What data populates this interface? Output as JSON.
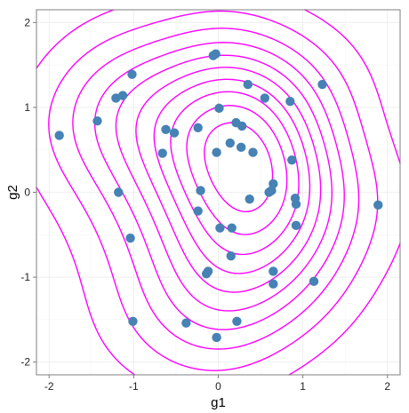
{
  "chart_data": {
    "type": "scatter",
    "title": "",
    "xlabel": "g1",
    "ylabel": "g2",
    "xlim": [
      -2.15,
      2.15
    ],
    "ylim": [
      -2.15,
      2.15
    ],
    "x_ticks": [
      -2,
      -1,
      0,
      1,
      2
    ],
    "y_ticks": [
      -2,
      -1,
      0,
      1,
      2
    ],
    "x_tick_labels": [
      "-2",
      "-1",
      "0",
      "1",
      "2"
    ],
    "y_tick_labels": [
      "-2",
      "-1",
      "0",
      "1",
      "2"
    ],
    "grid": true,
    "background": "#ffffff",
    "panel_border": "#7f7f7f",
    "grid_color": "#ebebeb",
    "point_color": "#4682b4",
    "contour_color": "#ff00ff",
    "points": [
      {
        "x": -1.88,
        "y": 0.67
      },
      {
        "x": -1.43,
        "y": 0.84
      },
      {
        "x": -1.02,
        "y": 1.39
      },
      {
        "x": -1.21,
        "y": 1.11
      },
      {
        "x": -1.13,
        "y": 1.14
      },
      {
        "x": -1.18,
        "y": 0.0
      },
      {
        "x": -1.04,
        "y": -0.54
      },
      {
        "x": -1.01,
        "y": -1.52
      },
      {
        "x": -0.62,
        "y": 0.74
      },
      {
        "x": -0.52,
        "y": 0.7
      },
      {
        "x": -0.66,
        "y": 0.46
      },
      {
        "x": -0.24,
        "y": 0.76
      },
      {
        "x": -0.06,
        "y": 1.61
      },
      {
        "x": -0.03,
        "y": 1.63
      },
      {
        "x": 0.01,
        "y": 0.99
      },
      {
        "x": 0.35,
        "y": 1.27
      },
      {
        "x": 0.55,
        "y": 1.11
      },
      {
        "x": 0.85,
        "y": 1.07
      },
      {
        "x": 1.23,
        "y": 1.27
      },
      {
        "x": 0.21,
        "y": 0.82
      },
      {
        "x": 0.28,
        "y": 0.78
      },
      {
        "x": 0.14,
        "y": 0.58
      },
      {
        "x": 0.27,
        "y": 0.53
      },
      {
        "x": 0.41,
        "y": 0.47
      },
      {
        "x": -0.02,
        "y": 0.47
      },
      {
        "x": 0.87,
        "y": 0.38
      },
      {
        "x": 0.65,
        "y": 0.1
      },
      {
        "x": 0.63,
        "y": 0.02
      },
      {
        "x": 0.6,
        "y": 0.0
      },
      {
        "x": 0.37,
        "y": -0.08
      },
      {
        "x": -0.21,
        "y": 0.02
      },
      {
        "x": -0.24,
        "y": -0.22
      },
      {
        "x": 0.91,
        "y": -0.07
      },
      {
        "x": 0.92,
        "y": -0.14
      },
      {
        "x": 0.92,
        "y": -0.39
      },
      {
        "x": 0.02,
        "y": -0.42
      },
      {
        "x": 0.16,
        "y": -0.42
      },
      {
        "x": 0.15,
        "y": -0.75
      },
      {
        "x": -0.12,
        "y": -0.93
      },
      {
        "x": -0.14,
        "y": -0.96
      },
      {
        "x": 0.65,
        "y": -0.93
      },
      {
        "x": 0.65,
        "y": -1.08
      },
      {
        "x": 1.13,
        "y": -1.05
      },
      {
        "x": -0.38,
        "y": -1.54
      },
      {
        "x": 0.22,
        "y": -1.52
      },
      {
        "x": -0.02,
        "y": -1.71
      },
      {
        "x": 1.89,
        "y": -0.15
      }
    ]
  }
}
